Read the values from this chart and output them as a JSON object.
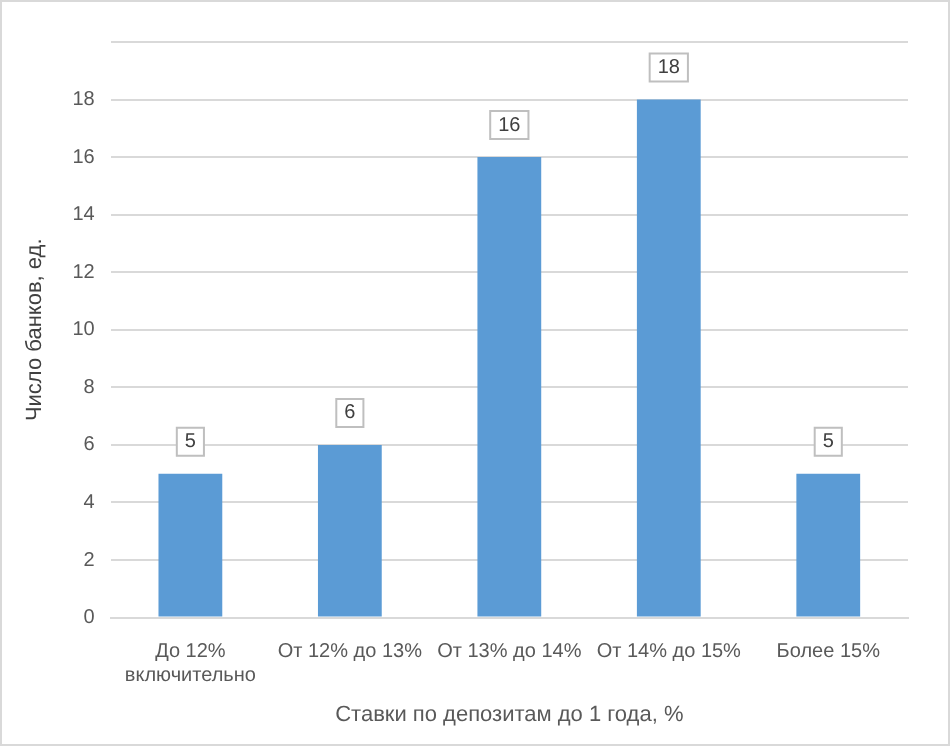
{
  "chart_data": {
    "type": "bar",
    "xlabel": "Ставки по депозитам до 1 года, %",
    "ylabel": "Число банков, ед.",
    "categories": [
      "До 12% включительно",
      "От 12% до 13%",
      "От 13% до 14%",
      "От 14% до 15%",
      "Более 15%"
    ],
    "values": [
      5,
      6,
      16,
      18,
      5
    ],
    "color": "#5b9bd5",
    "data_labels": true,
    "grid": "y",
    "ylim": [
      0,
      20
    ],
    "yticks": [
      0,
      2,
      4,
      6,
      8,
      10,
      12,
      14,
      16,
      18,
      {
        "value": 20,
        "label": null
      }
    ]
  }
}
